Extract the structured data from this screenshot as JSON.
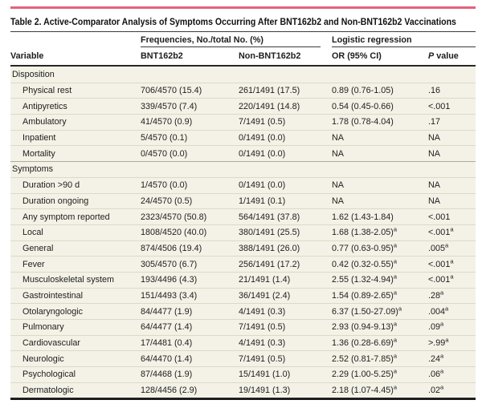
{
  "table": {
    "title": "Table 2. Active-Comparator Analysis of Symptoms Occurring After BNT162b2 and Non-BNT162b2 Vaccinations",
    "accent_color": "#e4607c",
    "body_bg": "#f4f2e6",
    "header": {
      "freq_group": "Frequencies, No./total No. (%)",
      "logit_group": "Logistic regression",
      "variable": "Variable",
      "bnt": "BNT162b2",
      "non_bnt": "Non-BNT162b2",
      "or": "OR (95% CI)",
      "p_italic": "P",
      "p_rest": " value"
    },
    "footnote_marker": "a",
    "sections": [
      {
        "label": "Disposition",
        "rows": [
          {
            "label": "Physical rest",
            "bnt": "706/4570 (15.4)",
            "non": "261/1491 (17.5)",
            "or": "0.89 (0.76-1.05)",
            "p": ".16"
          },
          {
            "label": "Antipyretics",
            "bnt": "339/4570 (7.4)",
            "non": "220/1491 (14.8)",
            "or": "0.54 (0.45-0.66)",
            "p": "<.001"
          },
          {
            "label": "Ambulatory",
            "bnt": "41/4570 (0.9)",
            "non": "7/1491 (0.5)",
            "or": "1.78 (0.78-4.04)",
            "p": ".17"
          },
          {
            "label": "Inpatient",
            "bnt": "5/4570 (0.1)",
            "non": "0/1491 (0.0)",
            "or": "NA",
            "p": "NA"
          },
          {
            "label": "Mortality",
            "bnt": "0/4570 (0.0)",
            "non": "0/1491 (0.0)",
            "or": "NA",
            "p": "NA"
          }
        ]
      },
      {
        "label": "Symptoms",
        "rows": [
          {
            "label": "Duration >90 d",
            "bnt": "1/4570 (0.0)",
            "non": "0/1491 (0.0)",
            "or": "NA",
            "p": "NA"
          },
          {
            "label": "Duration ongoing",
            "bnt": "24/4570 (0.5)",
            "non": "1/1491 (0.1)",
            "or": "NA",
            "p": "NA"
          },
          {
            "label": "Any symptom reported",
            "bnt": "2323/4570 (50.8)",
            "non": "564/1491 (37.8)",
            "or": "1.62 (1.43-1.84)",
            "p": "<.001"
          },
          {
            "label": "Local",
            "bnt": "1808/4520 (40.0)",
            "non": "380/1491 (25.5)",
            "or": "1.68 (1.38-2.05)",
            "or_sup": "a",
            "p": "<.001",
            "p_sup": "a"
          },
          {
            "label": "General",
            "bnt": "874/4506 (19.4)",
            "non": "388/1491 (26.0)",
            "or": "0.77 (0.63-0.95)",
            "or_sup": "a",
            "p": ".005",
            "p_sup": "a"
          },
          {
            "label": "Fever",
            "bnt": "305/4570 (6.7)",
            "non": "256/1491 (17.2)",
            "or": "0.42 (0.32-0.55)",
            "or_sup": "a",
            "p": "<.001",
            "p_sup": "a"
          },
          {
            "label": "Musculoskeletal system",
            "bnt": "193/4496 (4.3)",
            "non": "21/1491 (1.4)",
            "or": "2.55 (1.32-4.94)",
            "or_sup": "a",
            "p": "<.001",
            "p_sup": "a"
          },
          {
            "label": "Gastrointestinal",
            "bnt": "151/4493 (3.4)",
            "non": "36/1491 (2.4)",
            "or": "1.54 (0.89-2.65)",
            "or_sup": "a",
            "p": ".28",
            "p_sup": "a"
          },
          {
            "label": "Otolaryngologic",
            "bnt": "84/4477 (1.9)",
            "non": "4/1491 (0.3)",
            "or": "6.37 (1.50-27.09)",
            "or_sup": "a",
            "p": ".004",
            "p_sup": "a"
          },
          {
            "label": "Pulmonary",
            "bnt": "64/4477 (1.4)",
            "non": "7/1491 (0.5)",
            "or": "2.93 (0.94-9.13)",
            "or_sup": "a",
            "p": ".09",
            "p_sup": "a"
          },
          {
            "label": "Cardiovascular",
            "bnt": "17/4481 (0.4)",
            "non": "4/1491 (0.3)",
            "or": "1.36 (0.28-6.69)",
            "or_sup": "a",
            "p": ">.99",
            "p_sup": "a"
          },
          {
            "label": "Neurologic",
            "bnt": "64/4470 (1.4)",
            "non": "7/1491 (0.5)",
            "or": "2.52 (0.81-7.85)",
            "or_sup": "a",
            "p": ".24",
            "p_sup": "a"
          },
          {
            "label": "Psychological",
            "bnt": "87/4468 (1.9)",
            "non": "15/1491 (1.0)",
            "or": "2.29 (1.00-5.25)",
            "or_sup": "a",
            "p": ".06",
            "p_sup": "a"
          },
          {
            "label": "Dermatologic",
            "bnt": "128/4456 (2.9)",
            "non": "19/1491 (1.3)",
            "or": "2.18 (1.07-4.45)",
            "or_sup": "a",
            "p": ".02",
            "p_sup": "a"
          }
        ]
      }
    ]
  }
}
